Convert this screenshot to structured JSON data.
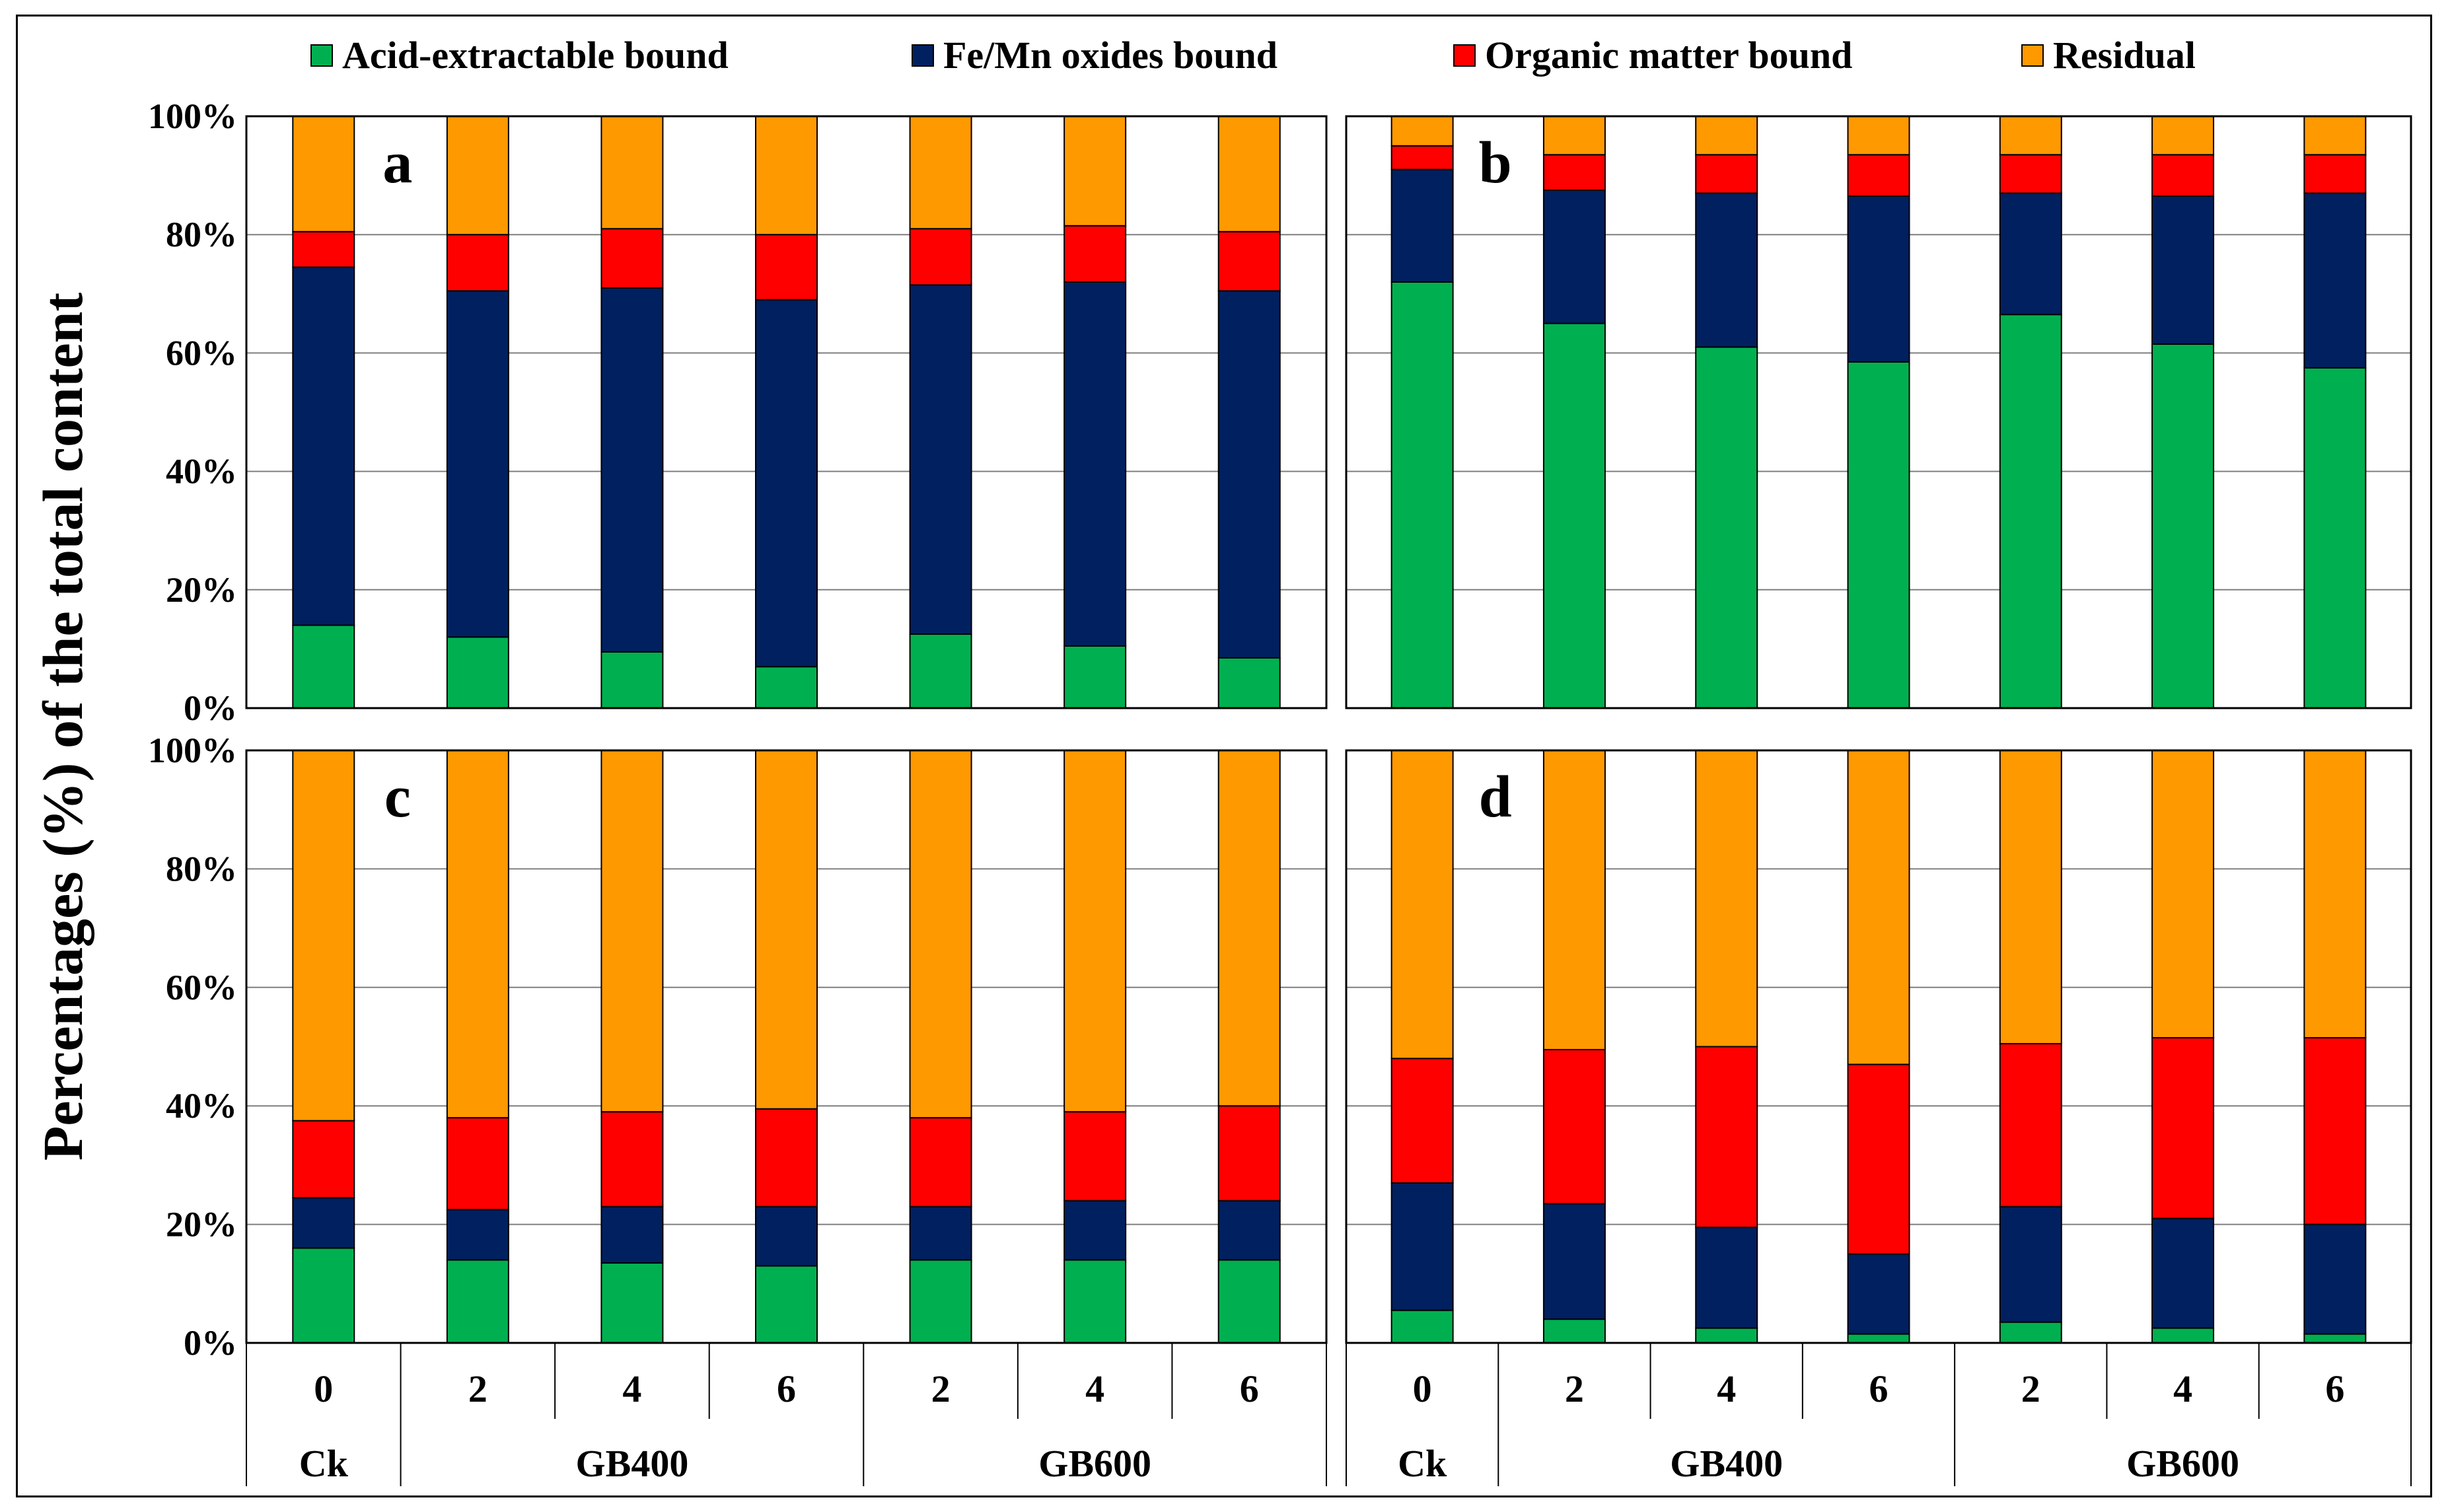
{
  "legend": [
    {
      "label": "Acid-extractable bound",
      "color": "#00b050"
    },
    {
      "label": "Fe/Mn oxides bound",
      "color": "#002060"
    },
    {
      "label": "Organic matter bound",
      "color": "#ff0000"
    },
    {
      "label": "Residual",
      "color": "#ff9900"
    }
  ],
  "y_axis_label": "Percentages (%) of the total content",
  "y_ticks": [
    "0%",
    "20%",
    "40%",
    "60%",
    "80%",
    "100%"
  ],
  "x_categories": [
    "0",
    "2",
    "4",
    "6",
    "2",
    "4",
    "6"
  ],
  "x_groups": [
    {
      "label": "Ck",
      "span": 1
    },
    {
      "label": "GB400",
      "span": 3
    },
    {
      "label": "GB600",
      "span": 3
    }
  ],
  "chart_data": [
    {
      "type": "bar",
      "stacked": true,
      "panel": "a",
      "title": "a",
      "categories": [
        "0",
        "2",
        "4",
        "6",
        "2",
        "4",
        "6"
      ],
      "groups": [
        "Ck",
        "GB400",
        "GB400",
        "GB400",
        "GB600",
        "GB600",
        "GB600"
      ],
      "ylim": [
        0,
        100
      ],
      "series": [
        {
          "name": "Acid-extractable bound",
          "values": [
            14,
            12,
            9.5,
            7,
            12.5,
            10.5,
            8.5
          ]
        },
        {
          "name": "Fe/Mn oxides bound",
          "values": [
            60.5,
            58.5,
            61.5,
            62,
            59,
            61.5,
            62
          ]
        },
        {
          "name": "Organic matter bound",
          "values": [
            6,
            9.5,
            10,
            11,
            9.5,
            9.5,
            10
          ]
        },
        {
          "name": "Residual",
          "values": [
            19.5,
            20,
            19,
            20,
            19,
            18.5,
            19.5
          ]
        }
      ]
    },
    {
      "type": "bar",
      "stacked": true,
      "panel": "b",
      "title": "b",
      "categories": [
        "0",
        "2",
        "4",
        "6",
        "2",
        "4",
        "6"
      ],
      "groups": [
        "Ck",
        "GB400",
        "GB400",
        "GB400",
        "GB600",
        "GB600",
        "GB600"
      ],
      "ylim": [
        0,
        100
      ],
      "series": [
        {
          "name": "Acid-extractable bound",
          "values": [
            72,
            65,
            61,
            58.5,
            66.5,
            61.5,
            57.5
          ]
        },
        {
          "name": "Fe/Mn oxides bound",
          "values": [
            19,
            22.5,
            26,
            28,
            20.5,
            25,
            29.5
          ]
        },
        {
          "name": "Organic matter bound",
          "values": [
            4,
            6,
            6.5,
            7,
            6.5,
            7,
            6.5
          ]
        },
        {
          "name": "Residual",
          "values": [
            5,
            6.5,
            6.5,
            6.5,
            6.5,
            6.5,
            6.5
          ]
        }
      ]
    },
    {
      "type": "bar",
      "stacked": true,
      "panel": "c",
      "title": "c",
      "categories": [
        "0",
        "2",
        "4",
        "6",
        "2",
        "4",
        "6"
      ],
      "groups": [
        "Ck",
        "GB400",
        "GB400",
        "GB400",
        "GB600",
        "GB600",
        "GB600"
      ],
      "ylim": [
        0,
        100
      ],
      "series": [
        {
          "name": "Acid-extractable bound",
          "values": [
            16,
            14,
            13.5,
            13,
            14,
            14,
            14
          ]
        },
        {
          "name": "Fe/Mn oxides bound",
          "values": [
            8.5,
            8.5,
            9.5,
            10,
            9,
            10,
            10
          ]
        },
        {
          "name": "Organic matter bound",
          "values": [
            13,
            15.5,
            16,
            16.5,
            15,
            15,
            16
          ]
        },
        {
          "name": "Residual",
          "values": [
            62.5,
            62,
            61,
            60.5,
            62,
            61,
            60
          ]
        }
      ]
    },
    {
      "type": "bar",
      "stacked": true,
      "panel": "d",
      "title": "d",
      "categories": [
        "0",
        "2",
        "4",
        "6",
        "2",
        "4",
        "6"
      ],
      "groups": [
        "Ck",
        "GB400",
        "GB400",
        "GB400",
        "GB600",
        "GB600",
        "GB600"
      ],
      "ylim": [
        0,
        100
      ],
      "series": [
        {
          "name": "Acid-extractable bound",
          "values": [
            5.5,
            4,
            2.5,
            1.5,
            3.5,
            2.5,
            1.5
          ]
        },
        {
          "name": "Fe/Mn oxides bound",
          "values": [
            21.5,
            19.5,
            17,
            13.5,
            19.5,
            18.5,
            18.5
          ]
        },
        {
          "name": "Organic matter bound",
          "values": [
            21,
            26,
            30.5,
            32,
            27.5,
            30.5,
            31.5
          ]
        },
        {
          "name": "Residual",
          "values": [
            52,
            50.5,
            50,
            53,
            49.5,
            48.5,
            48.5
          ]
        }
      ]
    }
  ]
}
